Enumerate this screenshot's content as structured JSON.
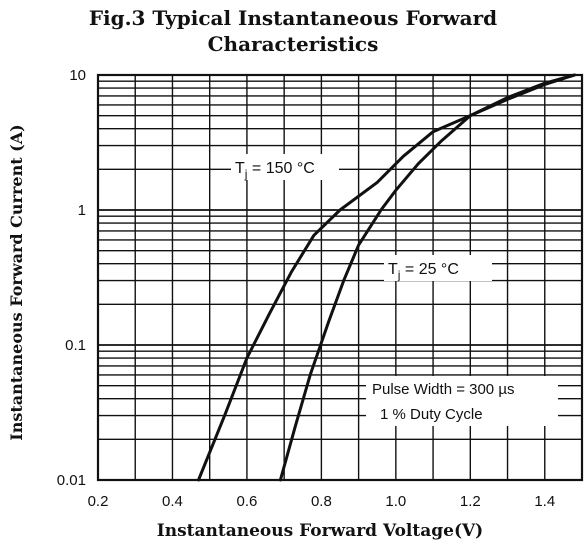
{
  "chart_data": {
    "type": "line",
    "title_lines": [
      "Fig.3 Typical Instantaneous Forward",
      "Characteristics"
    ],
    "xlabel": "Instantaneous Forward Voltage(V)",
    "ylabel": "Instantaneous Forward Current (A)",
    "x_scale": "linear",
    "y_scale": "log",
    "xlim": [
      0.2,
      1.5
    ],
    "ylim": [
      0.01,
      10
    ],
    "x_ticks": [
      0.2,
      0.4,
      0.6,
      0.8,
      1.0,
      1.2,
      1.4
    ],
    "x_tick_labels": [
      "0.2",
      "0.4",
      "0.6",
      "0.8",
      "1.0",
      "1.2",
      "1.4"
    ],
    "y_ticks": [
      0.01,
      0.1,
      1,
      10
    ],
    "y_tick_labels": [
      "0.01",
      "0.1",
      "1",
      "10"
    ],
    "grid": true,
    "series": [
      {
        "name": "Tj = 150 °C",
        "label_parts": {
          "base": "T",
          "sub": "j",
          "rest": " = 150 °C"
        },
        "x": [
          0.47,
          0.54,
          0.6,
          0.66,
          0.72,
          0.78,
          0.85,
          0.95,
          1.02,
          1.1,
          1.2,
          1.3,
          1.4,
          1.48
        ],
        "y": [
          0.01,
          0.03,
          0.08,
          0.17,
          0.35,
          0.65,
          1.0,
          1.6,
          2.5,
          3.8,
          5.0,
          6.6,
          8.5,
          10.0
        ]
      },
      {
        "name": "Tj = 25 °C",
        "label_parts": {
          "base": "T",
          "sub": "j",
          "rest": " = 25 °C"
        },
        "x": [
          0.69,
          0.73,
          0.77,
          0.82,
          0.86,
          0.9,
          0.96,
          1.0,
          1.06,
          1.12,
          1.2,
          1.3,
          1.4,
          1.48
        ],
        "y": [
          0.01,
          0.025,
          0.06,
          0.15,
          0.3,
          0.55,
          1.0,
          1.4,
          2.2,
          3.2,
          5.0,
          6.8,
          8.7,
          10.0
        ]
      }
    ],
    "annotations": [
      "Pulse Width = 300 µs",
      "1 % Duty Cycle"
    ]
  }
}
